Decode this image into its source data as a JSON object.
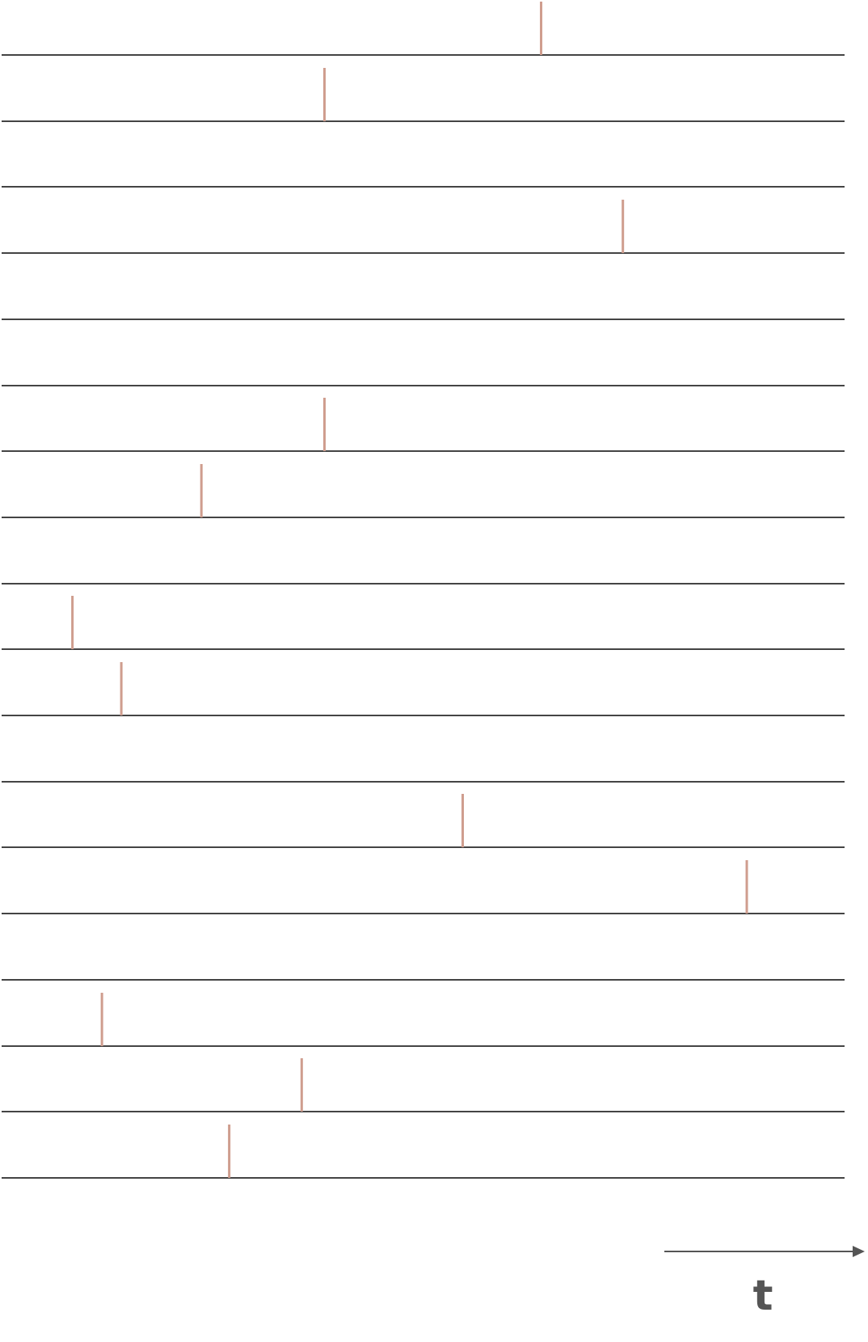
{
  "diagram": {
    "kind": "spike-raster",
    "time_axis": {
      "label": "t",
      "direction": "right"
    },
    "colors": {
      "baseline": "#444444",
      "spike": "#cf9d8e",
      "axis": "#555555"
    },
    "trials": [
      {
        "spike_time": 0.64
      },
      {
        "spike_time": 0.383
      },
      {
        "spike_time": null
      },
      {
        "spike_time": 0.737
      },
      {
        "spike_time": null
      },
      {
        "spike_time": null
      },
      {
        "spike_time": 0.383
      },
      {
        "spike_time": 0.237
      },
      {
        "spike_time": null
      },
      {
        "spike_time": 0.084
      },
      {
        "spike_time": 0.142
      },
      {
        "spike_time": null
      },
      {
        "spike_time": 0.547
      },
      {
        "spike_time": 0.884
      },
      {
        "spike_time": null
      },
      {
        "spike_time": 0.119
      },
      {
        "spike_time": 0.356
      },
      {
        "spike_time": 0.27
      }
    ]
  }
}
